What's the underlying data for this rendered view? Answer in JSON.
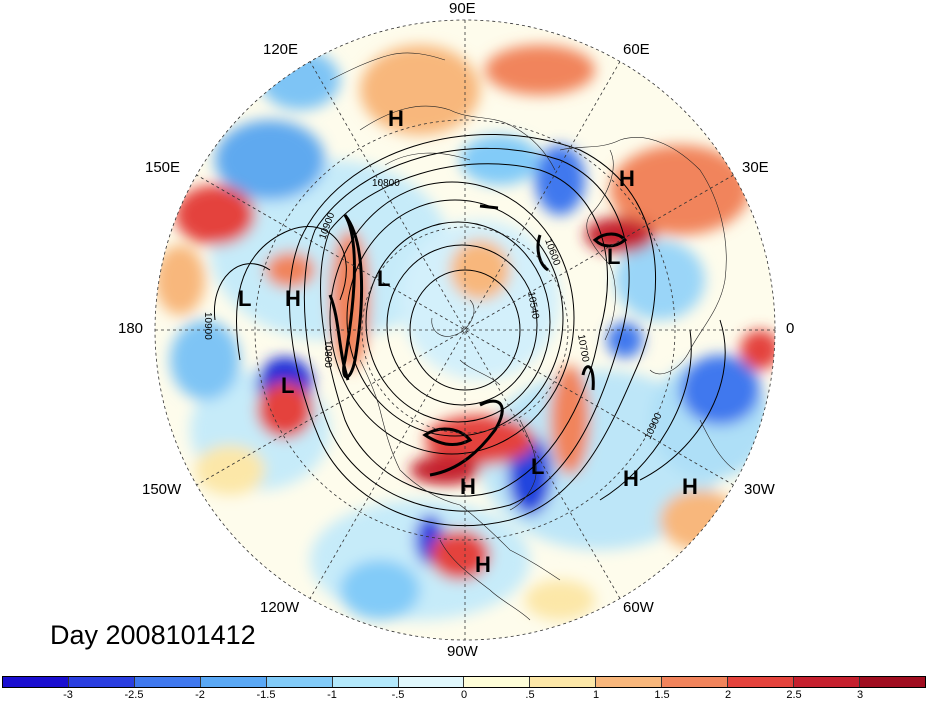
{
  "title": "Day 2008101412",
  "longitude_labels": {
    "deg90e": "90E",
    "deg60e": "60E",
    "deg30e": "30E",
    "deg0": "0",
    "deg30w": "30W",
    "deg60w": "60W",
    "deg90w": "90W",
    "deg120w": "120W",
    "deg150w": "150W",
    "deg180": "180",
    "deg150e": "150E",
    "deg120e": "120E"
  },
  "pressure_centers": [
    {
      "label": "H",
      "name": "high-central-asia"
    },
    {
      "label": "H",
      "name": "high-europe-north"
    },
    {
      "label": "L",
      "name": "low-north-sea"
    },
    {
      "label": "L",
      "name": "low-kamchatka"
    },
    {
      "label": "H",
      "name": "high-bering"
    },
    {
      "label": "L",
      "name": "low-west-pacific"
    },
    {
      "label": "L",
      "name": "low-gulf-alaska"
    },
    {
      "label": "L",
      "name": "low-nw-atlantic"
    },
    {
      "label": "H",
      "name": "high-central-atlantic"
    },
    {
      "label": "H",
      "name": "high-east-atlantic"
    },
    {
      "label": "H",
      "name": "high-central-us"
    },
    {
      "label": "H",
      "name": "high-mexico"
    }
  ],
  "contour_labels": [
    "10800",
    "10900",
    "10600",
    "10540",
    "10700",
    "10800",
    "10900",
    "10900"
  ],
  "colorbar": {
    "colors": [
      "#1a0ed0",
      "#2a3ee0",
      "#3f78ee",
      "#5aa8f5",
      "#82cbf8",
      "#b3e8fb",
      "#e0f7fc",
      "#fefdd8",
      "#fce7a8",
      "#f8b77c",
      "#f1845c",
      "#e4433c",
      "#c5202e",
      "#a00d20"
    ],
    "ticks": [
      "-3",
      "-2.5",
      "-2",
      "-1.5",
      "-1",
      "-.5",
      "0",
      ".5",
      "1",
      "1.5",
      "2",
      "2.5",
      "3"
    ]
  }
}
